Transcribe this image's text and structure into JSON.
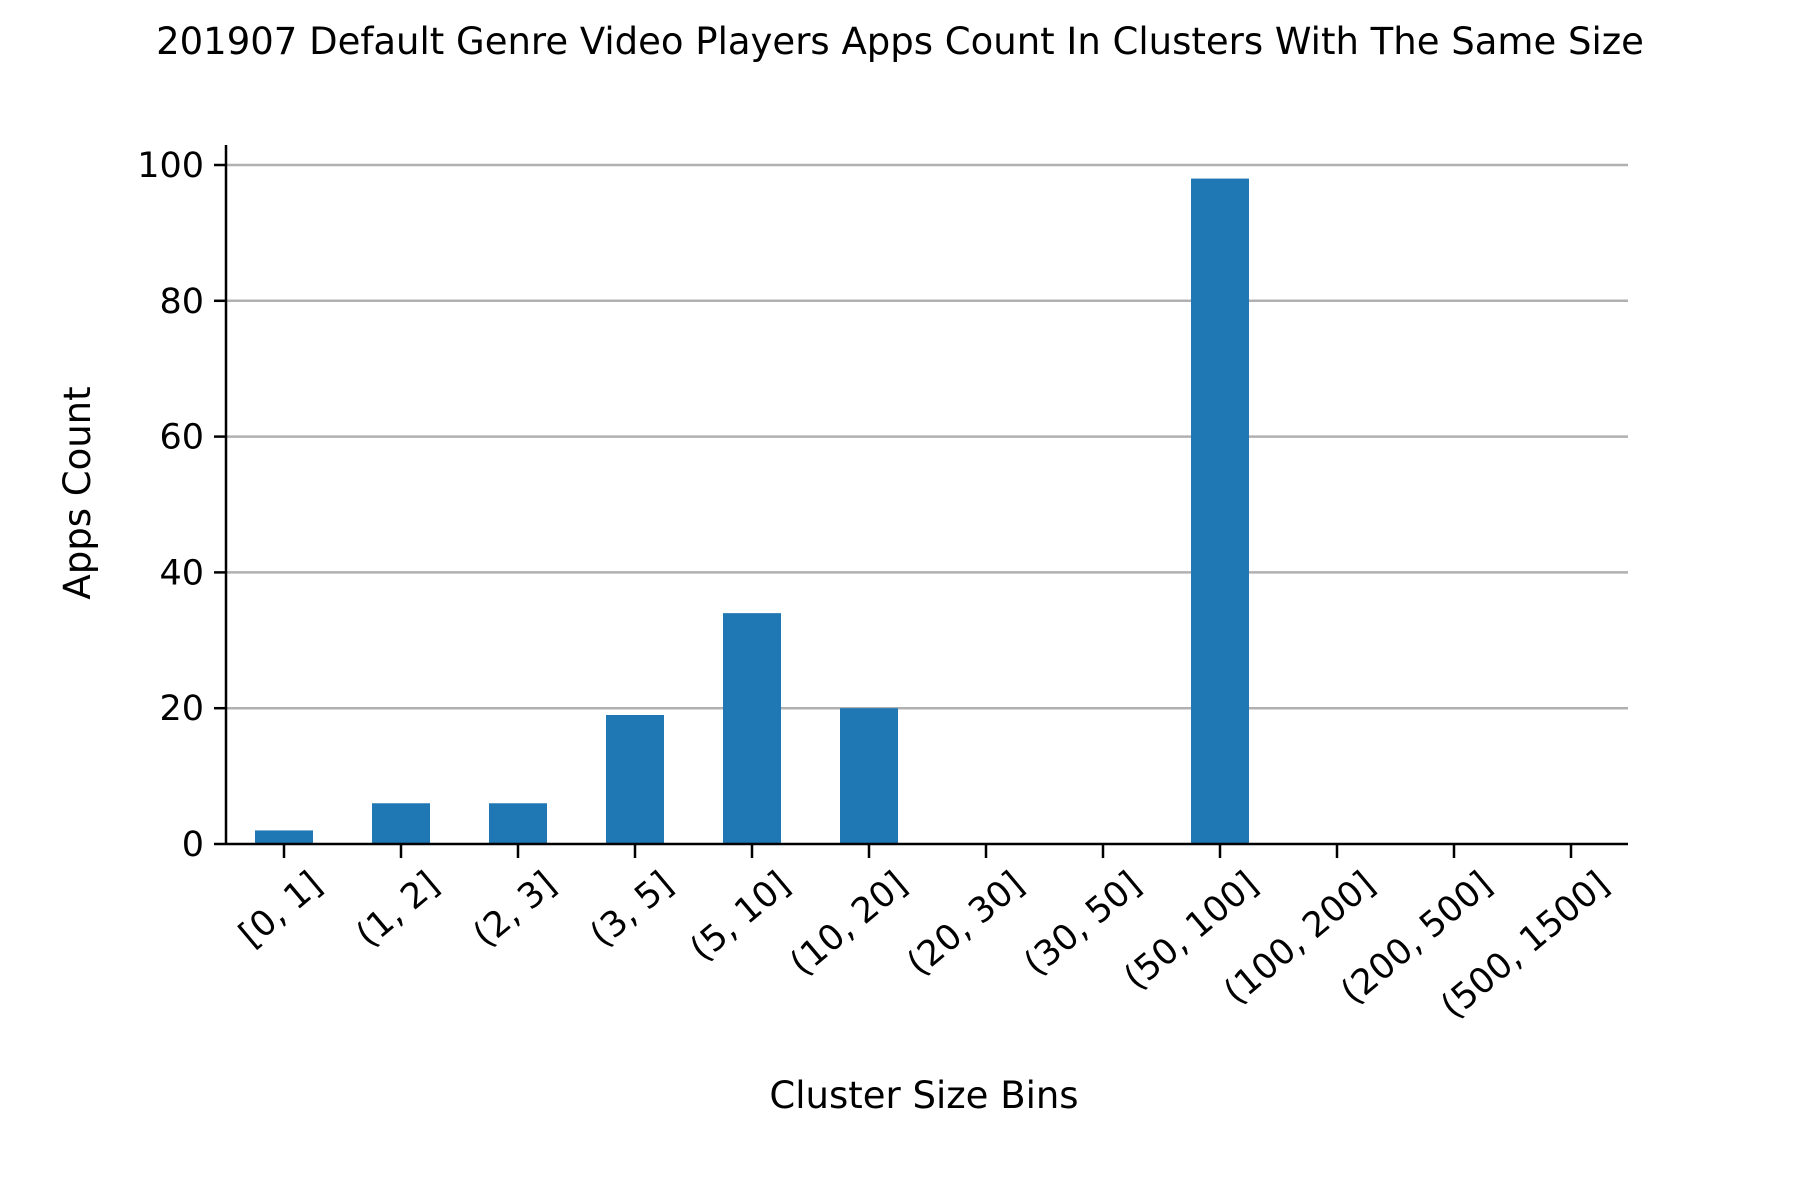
{
  "chart_data": {
    "type": "bar",
    "title": "201907 Default Genre Video Players Apps Count In Clusters With The Same Size",
    "xlabel": "Cluster Size Bins",
    "ylabel": "Apps Count",
    "categories": [
      "[0, 1]",
      "(1, 2]",
      "(2, 3]",
      "(3, 5]",
      "(5, 10]",
      "(10, 20]",
      "(20, 30]",
      "(30, 50]",
      "(50, 100]",
      "(100, 200]",
      "(200, 500]",
      "(500, 1500]"
    ],
    "values": [
      2,
      6,
      6,
      19,
      34,
      20,
      0,
      0,
      98,
      0,
      0,
      0
    ],
    "ylim": [
      0,
      103
    ],
    "yticks": [
      0,
      20,
      40,
      60,
      80,
      100
    ],
    "grid": "horizontal",
    "legend": "none",
    "colors": {
      "bar": "#1f77b4",
      "grid": "#b0b0b0",
      "axis": "#000000"
    }
  }
}
